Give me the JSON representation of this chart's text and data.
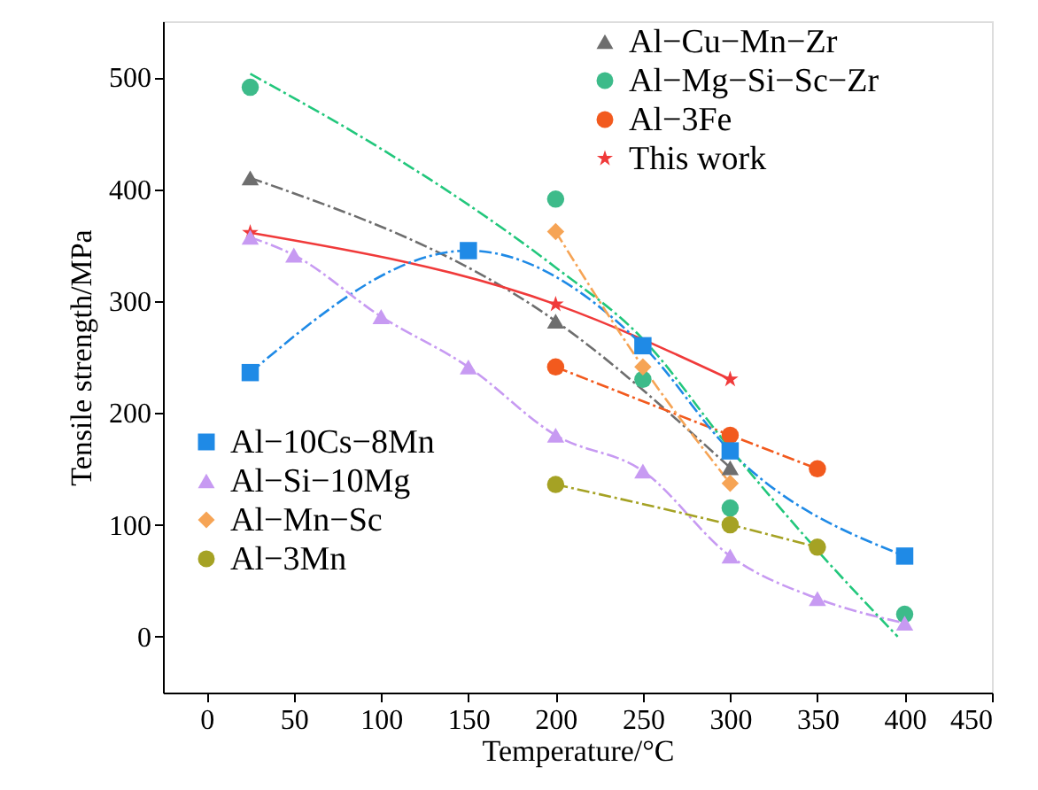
{
  "chart_data": {
    "type": "line",
    "xlabel": "Temperature/°C",
    "ylabel": "Tensile strength/MPa",
    "xlim": [
      -25,
      450
    ],
    "xticks": [
      0,
      50,
      100,
      150,
      200,
      250,
      300,
      350,
      400,
      450
    ],
    "ylim": [
      -50,
      550
    ],
    "yticks": [
      0,
      100,
      200,
      300,
      400,
      500
    ],
    "grid": false,
    "legend": "top right",
    "line_style": "dashed",
    "series": [
      {
        "name": "Al−Cu−Mn−Zr",
        "color": "#6e6e6e",
        "marker": "triangle",
        "x": [
          25,
          200,
          300
        ],
        "values": [
          410,
          282,
          151
        ]
      },
      {
        "name": "Al−Mg−Si−Sc−Zr",
        "color": "#3dbb8a",
        "marker": "circle",
        "type": "scatter",
        "x": [
          25,
          200,
          250,
          300,
          400
        ],
        "values": [
          491,
          391,
          230,
          115,
          20
        ]
      },
      {
        "name": "Al−3Fe",
        "color": "#f25a1e",
        "marker": "circle",
        "x": [
          200,
          300,
          350
        ],
        "values": [
          241,
          180,
          150
        ]
      },
      {
        "name": "This work",
        "color": "#f03a3a",
        "marker": "star",
        "line_style": "solid",
        "x": [
          25,
          200,
          300
        ],
        "values": [
          361,
          297,
          230
        ]
      },
      {
        "name": "Al−10Cs−8Mn",
        "color": "#1f8ae6",
        "marker": "square",
        "x": [
          25,
          150,
          250,
          300,
          400
        ],
        "values": [
          236,
          345,
          260,
          166,
          72
        ]
      },
      {
        "name": "Al−Si−10Mg",
        "color": "#c79af2",
        "marker": "triangle",
        "x": [
          25,
          50,
          100,
          150,
          200,
          250,
          300,
          350,
          400
        ],
        "values": [
          357,
          341,
          286,
          241,
          180,
          148,
          72,
          34,
          12
        ]
      },
      {
        "name": "Al−Mn−Sc",
        "color": "#f6a455",
        "marker": "diamond",
        "x": [
          200,
          250,
          300
        ],
        "values": [
          362,
          241,
          137
        ]
      },
      {
        "name": "Al−3Mn",
        "color": "#a5a224",
        "marker": "circle",
        "x": [
          200,
          300,
          350
        ],
        "values": [
          136,
          100,
          80
        ]
      },
      {
        "type": "line",
        "color": "#22c77c",
        "marker": "none",
        "x": [
          25,
          100,
          150,
          200,
          250,
          300,
          350,
          396
        ],
        "values": [
          503,
          436,
          386,
          330,
          266,
          168,
          77,
          0
        ]
      }
    ]
  }
}
